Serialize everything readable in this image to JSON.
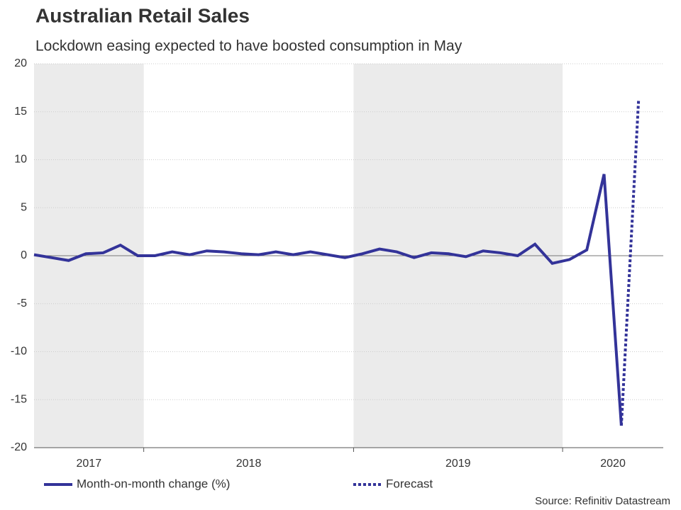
{
  "chart_data": {
    "type": "line",
    "title": "Australian Retail Sales",
    "subtitle": "Lockdown easing expected to have boosted consumption in May",
    "year_labels": [
      "2017",
      "2018",
      "2019",
      "2020"
    ],
    "series": [
      {
        "name": "Month-on-month change (%)",
        "color": "#333399",
        "style": "solid",
        "values": [
          0.1,
          -0.2,
          -0.5,
          0.2,
          0.3,
          1.1,
          0.0,
          0.0,
          0.4,
          0.1,
          0.5,
          0.4,
          0.2,
          0.1,
          0.4,
          0.1,
          0.4,
          0.1,
          -0.2,
          0.2,
          0.7,
          0.4,
          -0.2,
          0.3,
          0.2,
          -0.1,
          0.5,
          0.3,
          0.0,
          1.2,
          -0.8,
          -0.4,
          0.6,
          8.5,
          -17.7,
          null
        ]
      },
      {
        "name": "Forecast",
        "color": "#333399",
        "style": "dotted",
        "values": [
          null,
          null,
          null,
          null,
          null,
          null,
          null,
          null,
          null,
          null,
          null,
          null,
          null,
          null,
          null,
          null,
          null,
          null,
          null,
          null,
          null,
          null,
          null,
          null,
          null,
          null,
          null,
          null,
          null,
          null,
          null,
          null,
          null,
          null,
          -17.7,
          16.3
        ]
      }
    ],
    "ylim": [
      -20,
      20
    ],
    "yticks": [
      -20,
      -15,
      -10,
      -5,
      0,
      5,
      10,
      15,
      20
    ],
    "grid": true,
    "source": "Source: Refinitiv Datastream"
  }
}
